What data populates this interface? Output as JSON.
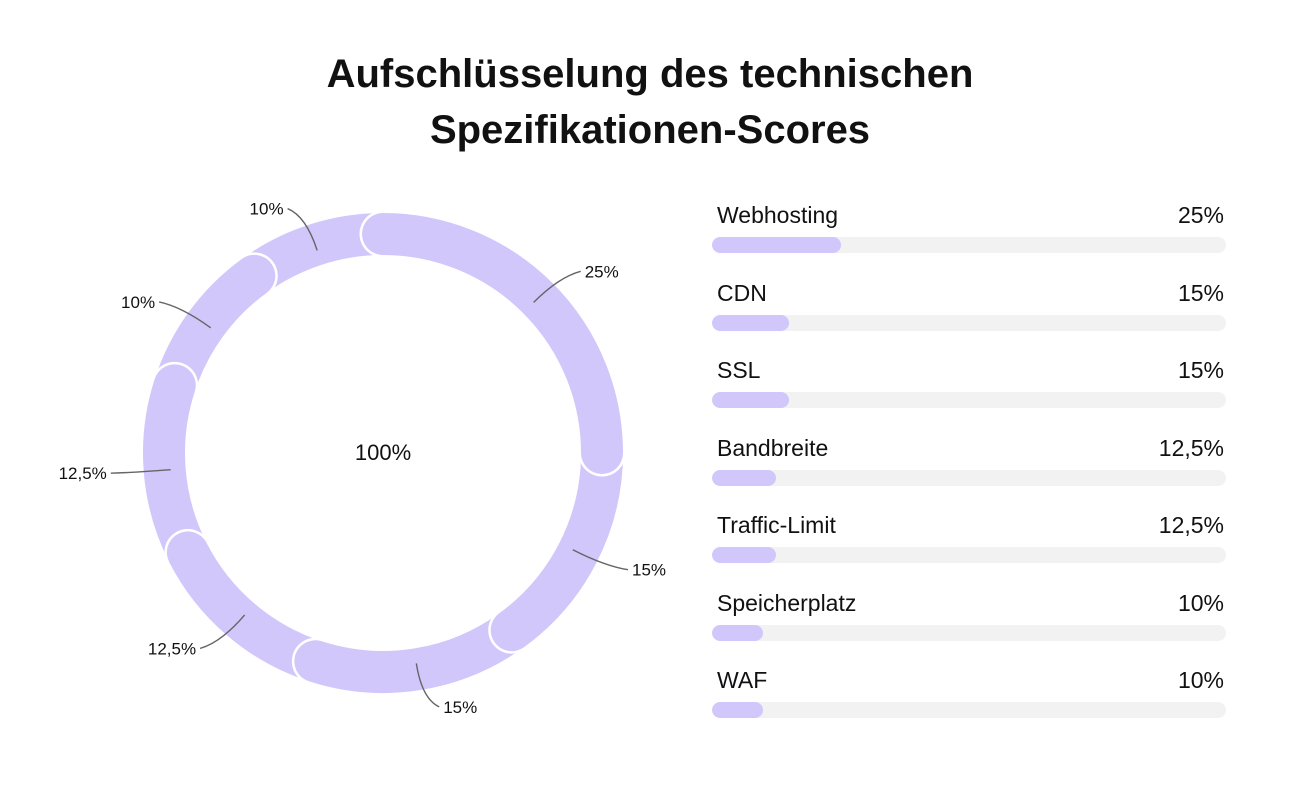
{
  "title_lines": [
    "Aufschlüsselung des technischen",
    "Spezifikationen-Scores"
  ],
  "colors": {
    "accent": "#d1c7fb",
    "track": "#f2f2f2",
    "text": "#111111",
    "leader": "#666666"
  },
  "chart_data": {
    "type": "pie",
    "variant": "donut",
    "center_label": "100%",
    "slices": [
      {
        "name": "Webhosting",
        "value": 25,
        "label": "25%"
      },
      {
        "name": "CDN",
        "value": 15,
        "label": "15%"
      },
      {
        "name": "SSL",
        "value": 15,
        "label": "15%"
      },
      {
        "name": "Bandbreite",
        "value": 12.5,
        "label": "12,5%"
      },
      {
        "name": "Traffic-Limit",
        "value": 12.5,
        "label": "12,5%"
      },
      {
        "name": "Speicherplatz",
        "value": 10,
        "label": "10%"
      },
      {
        "name": "WAF",
        "value": 10,
        "label": "10%"
      }
    ],
    "legend": "right"
  }
}
